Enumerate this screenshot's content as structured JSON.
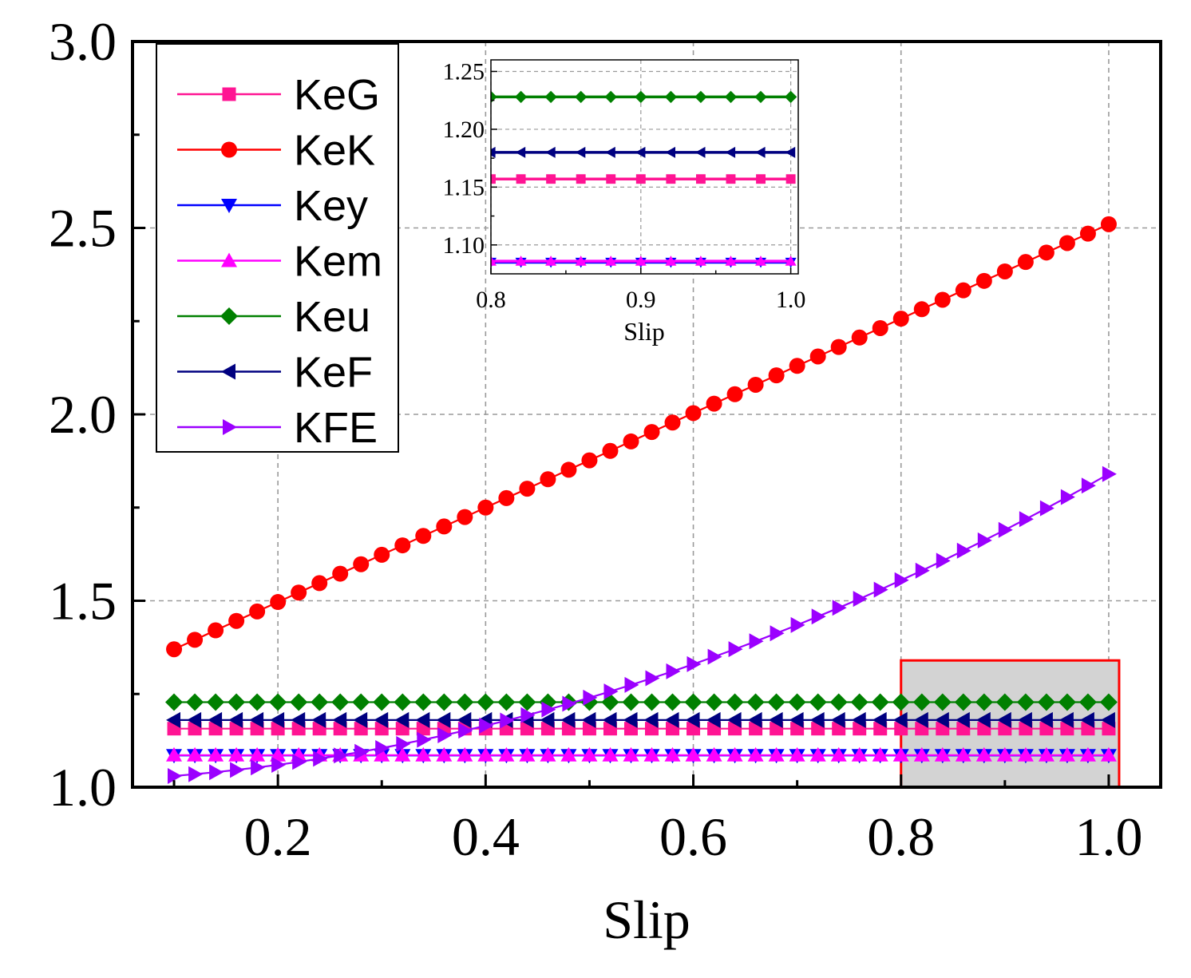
{
  "chart_data": {
    "type": "line",
    "title": "",
    "xlabel": "Slip",
    "ylabel": "",
    "xlim": [
      0.06,
      1.05
    ],
    "ylim": [
      1.0,
      3.0
    ],
    "xticks": [
      "0.2",
      "0.4",
      "0.6",
      "0.8",
      "1.0"
    ],
    "xtick_values": [
      0.2,
      0.4,
      0.6,
      0.8,
      1.0
    ],
    "yticks": [
      "1.0",
      "1.5",
      "2.0",
      "2.5",
      "3.0"
    ],
    "ytick_values": [
      1.0,
      1.5,
      2.0,
      2.5,
      3.0
    ],
    "grid": true,
    "legend_position": "top-left",
    "x_range": {
      "start": 0.1,
      "end": 1.0,
      "step": 0.02
    },
    "series": [
      {
        "name": "KeG",
        "color": "#ff1493",
        "marker": "square",
        "formula": "constant",
        "value": 1.157
      },
      {
        "name": "KeK",
        "color": "#ff0000",
        "marker": "circle",
        "formula": "linear",
        "y_at_0_1": 1.37,
        "y_at_1_0": 2.51
      },
      {
        "name": "Key",
        "color": "#0000ff",
        "marker": "triangle-down",
        "formula": "constant",
        "value": 1.085
      },
      {
        "name": "Kem",
        "color": "#ff00ff",
        "marker": "triangle-up",
        "formula": "constant",
        "value": 1.086
      },
      {
        "name": "Keu",
        "color": "#008000",
        "marker": "diamond",
        "formula": "constant",
        "value": 1.228
      },
      {
        "name": "KeF",
        "color": "#000080",
        "marker": "triangle-left",
        "formula": "constant",
        "value": 1.18
      },
      {
        "name": "KFE",
        "color": "#9b00ff",
        "marker": "triangle-right",
        "formula": "quadratic",
        "y_at_0_1": 1.03,
        "y_at_0_5": 1.24,
        "y_at_1_0": 1.84
      }
    ],
    "highlight_region": {
      "x": [
        0.8,
        1.01
      ],
      "y": [
        1.0,
        1.34
      ],
      "fill": "#d3d3d3",
      "stroke": "#ff0000"
    },
    "inset": {
      "xlabel": "Slip",
      "xlim": [
        0.8,
        1.005
      ],
      "ylim": [
        1.075,
        1.26
      ],
      "xticks": [
        "0.8",
        "0.9",
        "1.0"
      ],
      "xtick_values": [
        0.8,
        0.9,
        1.0
      ],
      "yticks": [
        "1.10",
        "1.15",
        "1.20",
        "1.25"
      ],
      "ytick_values": [
        1.1,
        1.15,
        1.2,
        1.25
      ],
      "x_range": {
        "start": 0.8,
        "end": 1.0,
        "step": 0.02
      },
      "series": [
        "KeG",
        "Key",
        "Kem",
        "Keu",
        "KeF"
      ]
    }
  }
}
